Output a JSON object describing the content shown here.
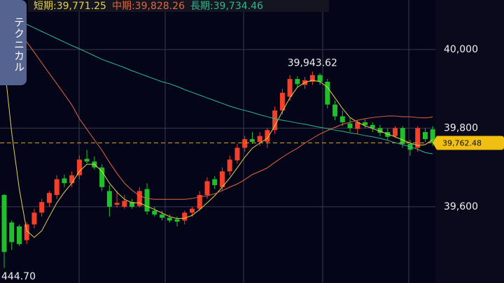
{
  "chart_data": {
    "type": "candlestick",
    "tab_label": "テクニカル",
    "open": [
      39630,
      39560,
      39550,
      39515,
      39555,
      39585,
      39610,
      39630,
      39672,
      39660,
      39680,
      39722,
      39715,
      39700,
      39640,
      39605,
      39600,
      39612,
      39602,
      39645,
      39590,
      39580,
      39572,
      39568,
      39565,
      39585,
      39595,
      39630,
      39670,
      39650,
      39690,
      39718,
      39750,
      39772,
      39765,
      39765,
      39795,
      39845,
      39880,
      39925,
      39910,
      39918,
      39935,
      39918,
      39860,
      39830,
      39812,
      39798,
      39815,
      39808,
      39800,
      39790,
      39780,
      39800,
      39760,
      39750,
      39790,
      39797
    ],
    "high": [
      39632,
      39565,
      39555,
      39560,
      39595,
      39620,
      39640,
      39680,
      39682,
      39690,
      39730,
      39745,
      39728,
      39708,
      39655,
      39640,
      39630,
      39620,
      39650,
      39660,
      39600,
      39590,
      39580,
      39575,
      39590,
      39600,
      39640,
      39675,
      39678,
      39700,
      39730,
      39760,
      39780,
      39790,
      39790,
      39800,
      39855,
      39900,
      39935,
      39932,
      39930,
      39943.62,
      39940,
      39925,
      39870,
      39845,
      39825,
      39820,
      39822,
      39815,
      39808,
      39800,
      39805,
      39805,
      39770,
      39805,
      39800,
      39805
    ],
    "low": [
      39444.7,
      39490,
      39500,
      39505,
      39545,
      39575,
      39600,
      39620,
      39650,
      39650,
      39670,
      39710,
      39695,
      39640,
      39575,
      39598,
      39595,
      39595,
      39598,
      39580,
      39575,
      39565,
      39560,
      39550,
      39555,
      39575,
      39590,
      39620,
      39645,
      39640,
      39680,
      39710,
      39740,
      39760,
      39755,
      39750,
      39785,
      39835,
      39870,
      39905,
      39900,
      39910,
      39910,
      39850,
      39820,
      39805,
      39790,
      39785,
      39800,
      39790,
      39780,
      39770,
      39775,
      39750,
      39730,
      39740,
      39765,
      39755
    ],
    "close": [
      39485,
      39510,
      39505,
      39555,
      39585,
      39612,
      39635,
      39670,
      39660,
      39680,
      39720,
      39715,
      39700,
      39650,
      39600,
      39610,
      39615,
      39600,
      39640,
      39588,
      39580,
      39572,
      39565,
      39562,
      39585,
      39595,
      39630,
      39665,
      39655,
      39690,
      39720,
      39750,
      39772,
      39765,
      39780,
      39795,
      39845,
      39890,
      39925,
      39912,
      39922,
      39935,
      39918,
      39860,
      39830,
      39815,
      39800,
      39815,
      39808,
      39800,
      39788,
      39778,
      39800,
      39760,
      39745,
      39800,
      39772,
      39762.48
    ],
    "up_color": "#f2402a",
    "down_color": "#1fc02c",
    "series": [
      {
        "name": "短期:39,771.25",
        "color": "#e6d24a",
        "values": [
          39966,
          39788,
          39646,
          39539,
          39522,
          39539,
          39575,
          39610,
          39637,
          39660,
          39690,
          39708,
          39708,
          39690,
          39660,
          39637,
          39619,
          39610,
          39610,
          39601,
          39593,
          39584,
          39575,
          39570,
          39571,
          39578,
          39593,
          39610,
          39628,
          39650,
          39673,
          39699,
          39726,
          39749,
          39762,
          39774,
          39806,
          39842,
          39877,
          39904,
          39916,
          39922,
          39918,
          39904,
          39877,
          39850,
          39827,
          39815,
          39806,
          39799,
          39792,
          39785,
          39778,
          39770,
          39762,
          39756,
          39758,
          39771.25
        ]
      },
      {
        "name": "中期:39,828.26",
        "color": "#e0683f",
        "values": [
          40099,
          40073,
          40046,
          40019,
          39993,
          39966,
          39939,
          39913,
          39886,
          39859,
          39824,
          39797,
          39770,
          39744,
          39713,
          39685,
          39660,
          39642,
          39628,
          39621,
          39619,
          39619,
          39619,
          39619,
          39619,
          39621,
          39625,
          39628,
          39633,
          39641,
          39650,
          39658,
          39669,
          39682,
          39690,
          39699,
          39713,
          39726,
          39738,
          39749,
          39762,
          39774,
          39785,
          39794,
          39802,
          39810,
          39815,
          39820,
          39824,
          39827,
          39829,
          39831,
          39831,
          39829,
          39829,
          39827,
          39826,
          39828.26
        ]
      },
      {
        "name": "長期:39,734.46",
        "color": "#2fb88e",
        "values": [
          40082,
          40076,
          40071,
          40064,
          40055,
          40046,
          40037,
          40028,
          40019,
          40010,
          40002,
          39993,
          39984,
          39975,
          39968,
          39961,
          39954,
          39946,
          39939,
          39932,
          39925,
          39918,
          39913,
          39906,
          39898,
          39891,
          39884,
          39877,
          39870,
          39863,
          39856,
          39850,
          39845,
          39840,
          39834,
          39829,
          39824,
          39820,
          39817,
          39813,
          39810,
          39806,
          39802,
          39799,
          39795,
          39792,
          39788,
          39785,
          39781,
          39778,
          39774,
          39769,
          39763,
          39758,
          39753,
          39746,
          39738,
          39734.46
        ]
      }
    ],
    "current_price": {
      "value": 39762.48,
      "label": "39,762.48"
    },
    "high_annotation": {
      "value": 39943.62,
      "label": "39,943.62"
    },
    "low_annotation": {
      "value": 39444.7,
      "label": "444.70"
    },
    "ylim": [
      39406,
      40126
    ],
    "yticks": [
      {
        "value": 40000,
        "label": "40,000"
      },
      {
        "value": 39800,
        "label": "39,800"
      },
      {
        "value": 39600,
        "label": "39,600"
      }
    ],
    "grid": true
  }
}
